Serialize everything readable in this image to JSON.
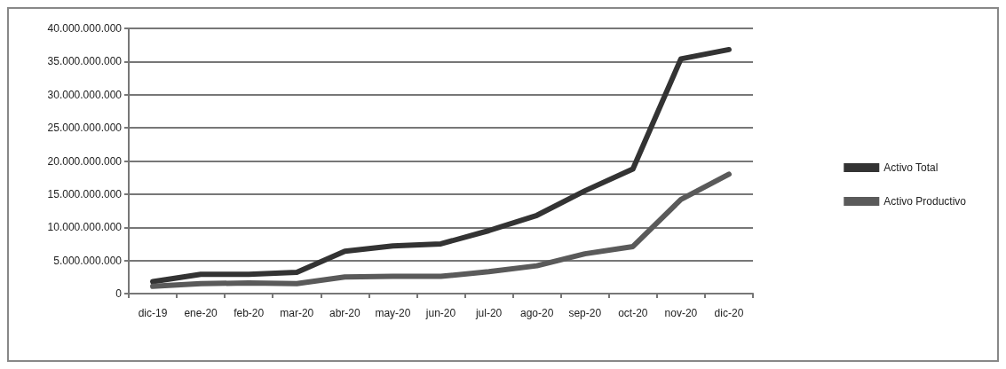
{
  "chart_data": {
    "type": "line",
    "categories": [
      "dic-19",
      "ene-20",
      "feb-20",
      "mar-20",
      "abr-20",
      "may-20",
      "jun-20",
      "jul-20",
      "ago-20",
      "sep-20",
      "oct-20",
      "nov-20",
      "dic-20"
    ],
    "series": [
      {
        "name": "Activo Total",
        "color": "#333333",
        "values": [
          1800000000,
          2900000000,
          2900000000,
          3200000000,
          6400000000,
          7200000000,
          7500000000,
          9500000000,
          11800000000,
          15500000000,
          18800000000,
          35400000000,
          36800000000
        ]
      },
      {
        "name": "Activo Productivo",
        "color": "#5a5a5a",
        "values": [
          1100000000,
          1500000000,
          1600000000,
          1500000000,
          2500000000,
          2600000000,
          2600000000,
          3300000000,
          4200000000,
          6000000000,
          7100000000,
          14200000000,
          18000000000
        ]
      }
    ],
    "ylim": [
      0,
      40000000000
    ],
    "yticks": [
      {
        "value": 0,
        "label": "0"
      },
      {
        "value": 5000000000,
        "label": "5.000.000.000"
      },
      {
        "value": 10000000000,
        "label": "10.000.000.000"
      },
      {
        "value": 15000000000,
        "label": "15.000.000.000"
      },
      {
        "value": 20000000000,
        "label": "20.000.000.000"
      },
      {
        "value": 25000000000,
        "label": "25.000.000.000"
      },
      {
        "value": 30000000000,
        "label": "30.000.000.000"
      },
      {
        "value": 35000000000,
        "label": "35.000.000.000"
      },
      {
        "value": 40000000000,
        "label": "40.000.000.000"
      }
    ],
    "grid": "y",
    "legend": "right",
    "marker": "none",
    "line_style": "solid"
  }
}
